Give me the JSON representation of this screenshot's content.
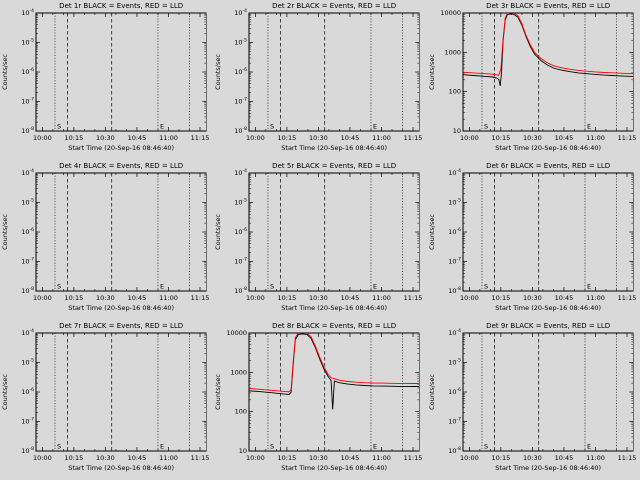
{
  "meta": {
    "background": "#d9d9d9",
    "axis_color": "#000000",
    "events_color": "#000000",
    "lld_color": "#ff0000",
    "legend_note": "BLACK = Events, RED = LLD"
  },
  "shared": {
    "xlabel": "Start Time (20-Sep-16 08:46:40)",
    "ylabel": "Counts/sec",
    "x_tick_labels": [
      "10:00",
      "10:15",
      "10:30",
      "10:45",
      "11:00",
      "11:15"
    ],
    "x_tick_minutes": [
      0,
      15,
      30,
      45,
      60,
      75
    ],
    "x_range_minutes": [
      -3,
      78
    ],
    "event_lines": [
      {
        "t": 6,
        "style": "dotted",
        "label": "S"
      },
      {
        "t": 12,
        "style": "dashed",
        "label": ""
      },
      {
        "t": 33,
        "style": "dashed",
        "label": ""
      },
      {
        "t": 55,
        "style": "dotted",
        "label": "E"
      },
      {
        "t": 70,
        "style": "dotted",
        "label": ""
      }
    ]
  },
  "chart_data": [
    {
      "type": "line",
      "detector": "Det 1r",
      "title": "Det 1r BLACK = Events, RED = LLD",
      "ylim_log10": [
        -8,
        -4
      ],
      "y_ticks": [
        {
          "base": "10",
          "exp": "-8",
          "log10": -8
        },
        {
          "base": "10",
          "exp": "-7",
          "log10": -7
        },
        {
          "base": "10",
          "exp": "-6",
          "log10": -6
        },
        {
          "base": "10",
          "exp": "-5",
          "log10": -5
        },
        {
          "base": "10",
          "exp": "-4",
          "log10": -4
        }
      ],
      "series": []
    },
    {
      "type": "line",
      "detector": "Det 2r",
      "title": "Det 2r BLACK = Events, RED = LLD",
      "ylim_log10": [
        -8,
        -4
      ],
      "y_ticks": [
        {
          "base": "10",
          "exp": "-8",
          "log10": -8
        },
        {
          "base": "10",
          "exp": "-7",
          "log10": -7
        },
        {
          "base": "10",
          "exp": "-6",
          "log10": -6
        },
        {
          "base": "10",
          "exp": "-5",
          "log10": -5
        },
        {
          "base": "10",
          "exp": "-4",
          "log10": -4
        }
      ],
      "series": []
    },
    {
      "type": "line",
      "detector": "Det 3r",
      "title": "Det 3r BLACK = Events, RED = LLD",
      "ylim_log10": [
        1,
        4
      ],
      "y_ticks": [
        {
          "base": "10",
          "exp": "",
          "log10": 1
        },
        {
          "base": "100",
          "exp": "",
          "log10": 2
        },
        {
          "base": "1000",
          "exp": "",
          "log10": 3
        },
        {
          "base": "10000",
          "exp": "",
          "log10": 4
        }
      ],
      "series": [
        {
          "name": "Events",
          "color_key": "events",
          "points": [
            [
              -3,
              270
            ],
            [
              2,
              258
            ],
            [
              7,
              246
            ],
            [
              11,
              236
            ],
            [
              13,
              222
            ],
            [
              14,
              205
            ],
            [
              14.7,
              140
            ],
            [
              15.3,
              300
            ],
            [
              16,
              1800
            ],
            [
              17,
              6500
            ],
            [
              18,
              9000
            ],
            [
              19.5,
              9500
            ],
            [
              21,
              9300
            ],
            [
              23,
              7900
            ],
            [
              25,
              4900
            ],
            [
              27,
              2450
            ],
            [
              29,
              1400
            ],
            [
              31,
              900
            ],
            [
              34,
              620
            ],
            [
              37,
              480
            ],
            [
              40,
              400
            ],
            [
              44,
              352
            ],
            [
              48,
              322
            ],
            [
              52,
              300
            ],
            [
              56,
              286
            ],
            [
              60,
              274
            ],
            [
              64,
              264
            ],
            [
              68,
              257
            ],
            [
              72,
              251
            ],
            [
              75,
              248
            ],
            [
              78,
              245
            ]
          ]
        },
        {
          "name": "LLD",
          "color_key": "lld",
          "points": [
            [
              -3,
              312
            ],
            [
              2,
              300
            ],
            [
              7,
              288
            ],
            [
              11,
              278
            ],
            [
              13,
              268
            ],
            [
              14,
              260
            ],
            [
              15,
              380
            ],
            [
              16,
              2100
            ],
            [
              17,
              7200
            ],
            [
              18,
              9900
            ],
            [
              19.5,
              10400
            ],
            [
              21,
              10100
            ],
            [
              23,
              8600
            ],
            [
              25,
              5300
            ],
            [
              27,
              2650
            ],
            [
              29,
              1550
            ],
            [
              31,
              1000
            ],
            [
              34,
              700
            ],
            [
              37,
              545
            ],
            [
              40,
              458
            ],
            [
              44,
              404
            ],
            [
              48,
              370
            ],
            [
              52,
              347
            ],
            [
              56,
              331
            ],
            [
              60,
              318
            ],
            [
              64,
              308
            ],
            [
              68,
              301
            ],
            [
              72,
              295
            ],
            [
              75,
              292
            ],
            [
              78,
              289
            ]
          ]
        }
      ]
    },
    {
      "type": "line",
      "detector": "Det 4r",
      "title": "Det 4r BLACK = Events, RED = LLD",
      "ylim_log10": [
        -8,
        -4
      ],
      "y_ticks": [
        {
          "base": "10",
          "exp": "-8",
          "log10": -8
        },
        {
          "base": "10",
          "exp": "-7",
          "log10": -7
        },
        {
          "base": "10",
          "exp": "-6",
          "log10": -6
        },
        {
          "base": "10",
          "exp": "-5",
          "log10": -5
        },
        {
          "base": "10",
          "exp": "-4",
          "log10": -4
        }
      ],
      "series": []
    },
    {
      "type": "line",
      "detector": "Det 5r",
      "title": "Det 5r BLACK = Events, RED = LLD",
      "ylim_log10": [
        -8,
        -4
      ],
      "y_ticks": [
        {
          "base": "10",
          "exp": "-8",
          "log10": -8
        },
        {
          "base": "10",
          "exp": "-7",
          "log10": -7
        },
        {
          "base": "10",
          "exp": "-6",
          "log10": -6
        },
        {
          "base": "10",
          "exp": "-5",
          "log10": -5
        },
        {
          "base": "10",
          "exp": "-4",
          "log10": -4
        }
      ],
      "series": []
    },
    {
      "type": "line",
      "detector": "Det 6r",
      "title": "Det 6r BLACK = Events, RED = LLD",
      "ylim_log10": [
        -8,
        -4
      ],
      "y_ticks": [
        {
          "base": "10",
          "exp": "-8",
          "log10": -8
        },
        {
          "base": "10",
          "exp": "-7",
          "log10": -7
        },
        {
          "base": "10",
          "exp": "-6",
          "log10": -6
        },
        {
          "base": "10",
          "exp": "-5",
          "log10": -5
        },
        {
          "base": "10",
          "exp": "-4",
          "log10": -4
        }
      ],
      "series": []
    },
    {
      "type": "line",
      "detector": "Det 7r",
      "title": "Det 7r BLACK = Events, RED = LLD",
      "ylim_log10": [
        -8,
        -4
      ],
      "y_ticks": [
        {
          "base": "10",
          "exp": "-8",
          "log10": -8
        },
        {
          "base": "10",
          "exp": "-7",
          "log10": -7
        },
        {
          "base": "10",
          "exp": "-6",
          "log10": -6
        },
        {
          "base": "10",
          "exp": "-5",
          "log10": -5
        },
        {
          "base": "10",
          "exp": "-4",
          "log10": -4
        }
      ],
      "series": []
    },
    {
      "type": "line",
      "detector": "Det 8r",
      "title": "Det 8r BLACK = Events, RED = LLD",
      "ylim_log10": [
        1,
        4
      ],
      "y_ticks": [
        {
          "base": "10",
          "exp": "",
          "log10": 1
        },
        {
          "base": "100",
          "exp": "",
          "log10": 2
        },
        {
          "base": "1000",
          "exp": "",
          "log10": 3
        },
        {
          "base": "10000",
          "exp": "",
          "log10": 4
        }
      ],
      "series": [
        {
          "name": "Events",
          "color_key": "events",
          "points": [
            [
              -3,
              340
            ],
            [
              2,
              323
            ],
            [
              7,
              306
            ],
            [
              11,
              291
            ],
            [
              14,
              280
            ],
            [
              16,
              273
            ],
            [
              17,
              310
            ],
            [
              18,
              1600
            ],
            [
              19,
              6800
            ],
            [
              20.5,
              9200
            ],
            [
              22.5,
              9500
            ],
            [
              24.5,
              9200
            ],
            [
              26.5,
              7300
            ],
            [
              28.5,
              4300
            ],
            [
              30.5,
              2250
            ],
            [
              32.5,
              1250
            ],
            [
              34.5,
              800
            ],
            [
              36,
              620
            ],
            [
              36.8,
              115
            ],
            [
              37.6,
              600
            ],
            [
              40,
              545
            ],
            [
              44,
              502
            ],
            [
              48,
              478
            ],
            [
              52,
              463
            ],
            [
              56,
              453
            ],
            [
              60,
              447
            ],
            [
              64,
              443
            ],
            [
              68,
              440
            ],
            [
              72,
              438
            ],
            [
              75,
              437
            ],
            [
              78,
              436
            ]
          ]
        },
        {
          "name": "LLD",
          "color_key": "lld",
          "points": [
            [
              -3,
              388
            ],
            [
              2,
              370
            ],
            [
              7,
              352
            ],
            [
              11,
              337
            ],
            [
              14,
              326
            ],
            [
              16,
              320
            ],
            [
              17,
              365
            ],
            [
              18,
              1900
            ],
            [
              19,
              7600
            ],
            [
              20.5,
              10100
            ],
            [
              22.5,
              10400
            ],
            [
              24.5,
              10100
            ],
            [
              26.5,
              8000
            ],
            [
              28.5,
              4700
            ],
            [
              30.5,
              2500
            ],
            [
              32.5,
              1400
            ],
            [
              34.5,
              905
            ],
            [
              36,
              720
            ],
            [
              37.6,
              690
            ],
            [
              40,
              632
            ],
            [
              44,
              585
            ],
            [
              48,
              560
            ],
            [
              52,
              546
            ],
            [
              56,
              537
            ],
            [
              60,
              531
            ],
            [
              64,
              527
            ],
            [
              68,
              524
            ],
            [
              72,
              522
            ],
            [
              75,
              521
            ],
            [
              78,
              520
            ]
          ]
        }
      ]
    },
    {
      "type": "line",
      "detector": "Det 9r",
      "title": "Det 9r BLACK = Events, RED = LLD",
      "ylim_log10": [
        -8,
        -4
      ],
      "y_ticks": [
        {
          "base": "10",
          "exp": "-8",
          "log10": -8
        },
        {
          "base": "10",
          "exp": "-7",
          "log10": -7
        },
        {
          "base": "10",
          "exp": "-6",
          "log10": -6
        },
        {
          "base": "10",
          "exp": "-5",
          "log10": -5
        },
        {
          "base": "10",
          "exp": "-4",
          "log10": -4
        }
      ],
      "series": []
    }
  ]
}
